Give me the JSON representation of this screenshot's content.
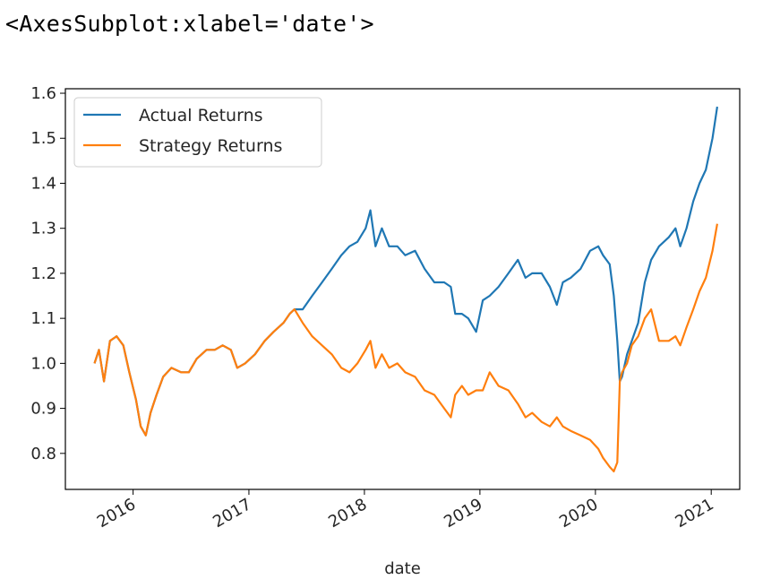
{
  "output_repr": "<AxesSubplot:xlabel='date'>",
  "chart_data": {
    "type": "line",
    "xlabel": "date",
    "ylabel": "",
    "title": "",
    "xlim": [
      "2015-06-01",
      "2021-04-01"
    ],
    "ylim": [
      0.72,
      1.61
    ],
    "x_ticks": [
      "2016-01-01",
      "2017-01-01",
      "2018-01-01",
      "2019-01-01",
      "2020-01-01",
      "2021-01-01"
    ],
    "x_tick_labels": [
      "2016",
      "2017",
      "2018",
      "2019",
      "2020",
      "2021"
    ],
    "y_ticks": [
      0.8,
      0.9,
      1.0,
      1.1,
      1.2,
      1.3,
      1.4,
      1.5,
      1.6
    ],
    "y_tick_labels": [
      "0.8",
      "0.9",
      "1.0",
      "1.1",
      "1.2",
      "1.3",
      "1.4",
      "1.5",
      "1.6"
    ],
    "legend": {
      "placement": "upper-left"
    },
    "series": [
      {
        "name": "Actual Returns",
        "color": "#1f77b4",
        "points": [
          [
            "2015-09-01",
            1.0
          ],
          [
            "2015-09-15",
            1.03
          ],
          [
            "2015-10-01",
            0.96
          ],
          [
            "2015-10-20",
            1.05
          ],
          [
            "2015-11-10",
            1.06
          ],
          [
            "2015-12-01",
            1.04
          ],
          [
            "2015-12-20",
            0.98
          ],
          [
            "2016-01-10",
            0.92
          ],
          [
            "2016-01-25",
            0.86
          ],
          [
            "2016-02-10",
            0.84
          ],
          [
            "2016-02-25",
            0.89
          ],
          [
            "2016-03-15",
            0.93
          ],
          [
            "2016-04-05",
            0.97
          ],
          [
            "2016-05-01",
            0.99
          ],
          [
            "2016-06-01",
            0.98
          ],
          [
            "2016-06-25",
            0.98
          ],
          [
            "2016-07-20",
            1.01
          ],
          [
            "2016-08-20",
            1.03
          ],
          [
            "2016-09-15",
            1.03
          ],
          [
            "2016-10-10",
            1.04
          ],
          [
            "2016-11-05",
            1.03
          ],
          [
            "2016-11-25",
            0.99
          ],
          [
            "2016-12-20",
            1.0
          ],
          [
            "2017-01-20",
            1.02
          ],
          [
            "2017-02-20",
            1.05
          ],
          [
            "2017-03-20",
            1.07
          ],
          [
            "2017-04-20",
            1.09
          ],
          [
            "2017-05-10",
            1.11
          ],
          [
            "2017-05-25",
            1.12
          ],
          [
            "2017-06-20",
            1.12
          ],
          [
            "2017-07-20",
            1.15
          ],
          [
            "2017-08-20",
            1.18
          ],
          [
            "2017-09-20",
            1.21
          ],
          [
            "2017-10-20",
            1.24
          ],
          [
            "2017-11-15",
            1.26
          ],
          [
            "2017-12-10",
            1.27
          ],
          [
            "2018-01-05",
            1.3
          ],
          [
            "2018-01-20",
            1.34
          ],
          [
            "2018-02-05",
            1.26
          ],
          [
            "2018-02-25",
            1.3
          ],
          [
            "2018-03-20",
            1.26
          ],
          [
            "2018-04-15",
            1.26
          ],
          [
            "2018-05-10",
            1.24
          ],
          [
            "2018-06-10",
            1.25
          ],
          [
            "2018-07-10",
            1.21
          ],
          [
            "2018-08-10",
            1.18
          ],
          [
            "2018-09-10",
            1.18
          ],
          [
            "2018-10-01",
            1.17
          ],
          [
            "2018-10-15",
            1.11
          ],
          [
            "2018-11-05",
            1.11
          ],
          [
            "2018-11-25",
            1.1
          ],
          [
            "2018-12-20",
            1.07
          ],
          [
            "2019-01-10",
            1.14
          ],
          [
            "2019-02-01",
            1.15
          ],
          [
            "2019-03-01",
            1.17
          ],
          [
            "2019-04-01",
            1.2
          ],
          [
            "2019-05-01",
            1.23
          ],
          [
            "2019-05-25",
            1.19
          ],
          [
            "2019-06-15",
            1.2
          ],
          [
            "2019-07-15",
            1.2
          ],
          [
            "2019-08-10",
            1.17
          ],
          [
            "2019-09-01",
            1.13
          ],
          [
            "2019-09-20",
            1.18
          ],
          [
            "2019-10-15",
            1.19
          ],
          [
            "2019-11-15",
            1.21
          ],
          [
            "2019-12-15",
            1.25
          ],
          [
            "2020-01-10",
            1.26
          ],
          [
            "2020-01-25",
            1.24
          ],
          [
            "2020-02-15",
            1.22
          ],
          [
            "2020-02-28",
            1.15
          ],
          [
            "2020-03-10",
            1.05
          ],
          [
            "2020-03-18",
            0.96
          ],
          [
            "2020-03-25",
            0.97
          ],
          [
            "2020-04-10",
            1.02
          ],
          [
            "2020-04-25",
            1.05
          ],
          [
            "2020-05-15",
            1.09
          ],
          [
            "2020-06-05",
            1.18
          ],
          [
            "2020-06-25",
            1.23
          ],
          [
            "2020-07-20",
            1.26
          ],
          [
            "2020-08-20",
            1.28
          ],
          [
            "2020-09-10",
            1.3
          ],
          [
            "2020-09-25",
            1.26
          ],
          [
            "2020-10-15",
            1.3
          ],
          [
            "2020-11-05",
            1.36
          ],
          [
            "2020-11-25",
            1.4
          ],
          [
            "2020-12-15",
            1.43
          ],
          [
            "2021-01-05",
            1.5
          ],
          [
            "2021-01-20",
            1.57
          ]
        ]
      },
      {
        "name": "Strategy Returns",
        "color": "#ff7f0e",
        "points": [
          [
            "2015-09-01",
            1.0
          ],
          [
            "2015-09-15",
            1.03
          ],
          [
            "2015-10-01",
            0.96
          ],
          [
            "2015-10-20",
            1.05
          ],
          [
            "2015-11-10",
            1.06
          ],
          [
            "2015-12-01",
            1.04
          ],
          [
            "2015-12-20",
            0.98
          ],
          [
            "2016-01-10",
            0.92
          ],
          [
            "2016-01-25",
            0.86
          ],
          [
            "2016-02-10",
            0.84
          ],
          [
            "2016-02-25",
            0.89
          ],
          [
            "2016-03-15",
            0.93
          ],
          [
            "2016-04-05",
            0.97
          ],
          [
            "2016-05-01",
            0.99
          ],
          [
            "2016-06-01",
            0.98
          ],
          [
            "2016-06-25",
            0.98
          ],
          [
            "2016-07-20",
            1.01
          ],
          [
            "2016-08-20",
            1.03
          ],
          [
            "2016-09-15",
            1.03
          ],
          [
            "2016-10-10",
            1.04
          ],
          [
            "2016-11-05",
            1.03
          ],
          [
            "2016-11-25",
            0.99
          ],
          [
            "2016-12-20",
            1.0
          ],
          [
            "2017-01-20",
            1.02
          ],
          [
            "2017-02-20",
            1.05
          ],
          [
            "2017-03-20",
            1.07
          ],
          [
            "2017-04-20",
            1.09
          ],
          [
            "2017-05-10",
            1.11
          ],
          [
            "2017-05-25",
            1.12
          ],
          [
            "2017-06-20",
            1.09
          ],
          [
            "2017-07-20",
            1.06
          ],
          [
            "2017-08-20",
            1.04
          ],
          [
            "2017-09-20",
            1.02
          ],
          [
            "2017-10-20",
            0.99
          ],
          [
            "2017-11-15",
            0.98
          ],
          [
            "2017-12-10",
            1.0
          ],
          [
            "2018-01-05",
            1.03
          ],
          [
            "2018-01-20",
            1.05
          ],
          [
            "2018-02-05",
            0.99
          ],
          [
            "2018-02-25",
            1.02
          ],
          [
            "2018-03-20",
            0.99
          ],
          [
            "2018-04-15",
            1.0
          ],
          [
            "2018-05-10",
            0.98
          ],
          [
            "2018-06-10",
            0.97
          ],
          [
            "2018-07-10",
            0.94
          ],
          [
            "2018-08-10",
            0.93
          ],
          [
            "2018-09-10",
            0.9
          ],
          [
            "2018-10-01",
            0.88
          ],
          [
            "2018-10-15",
            0.93
          ],
          [
            "2018-11-05",
            0.95
          ],
          [
            "2018-11-25",
            0.93
          ],
          [
            "2018-12-20",
            0.94
          ],
          [
            "2019-01-10",
            0.94
          ],
          [
            "2019-02-01",
            0.98
          ],
          [
            "2019-03-01",
            0.95
          ],
          [
            "2019-04-01",
            0.94
          ],
          [
            "2019-05-01",
            0.91
          ],
          [
            "2019-05-25",
            0.88
          ],
          [
            "2019-06-15",
            0.89
          ],
          [
            "2019-07-15",
            0.87
          ],
          [
            "2019-08-10",
            0.86
          ],
          [
            "2019-09-01",
            0.88
          ],
          [
            "2019-09-20",
            0.86
          ],
          [
            "2019-10-15",
            0.85
          ],
          [
            "2019-11-15",
            0.84
          ],
          [
            "2019-12-15",
            0.83
          ],
          [
            "2020-01-10",
            0.81
          ],
          [
            "2020-01-25",
            0.79
          ],
          [
            "2020-02-15",
            0.77
          ],
          [
            "2020-02-28",
            0.76
          ],
          [
            "2020-03-10",
            0.78
          ],
          [
            "2020-03-18",
            0.96
          ],
          [
            "2020-03-25",
            0.98
          ],
          [
            "2020-04-10",
            1.0
          ],
          [
            "2020-04-25",
            1.04
          ],
          [
            "2020-05-15",
            1.06
          ],
          [
            "2020-06-05",
            1.1
          ],
          [
            "2020-06-25",
            1.12
          ],
          [
            "2020-07-20",
            1.05
          ],
          [
            "2020-08-20",
            1.05
          ],
          [
            "2020-09-10",
            1.06
          ],
          [
            "2020-09-25",
            1.04
          ],
          [
            "2020-10-15",
            1.08
          ],
          [
            "2020-11-05",
            1.12
          ],
          [
            "2020-11-25",
            1.16
          ],
          [
            "2020-12-15",
            1.19
          ],
          [
            "2021-01-05",
            1.25
          ],
          [
            "2021-01-20",
            1.31
          ]
        ]
      }
    ]
  }
}
